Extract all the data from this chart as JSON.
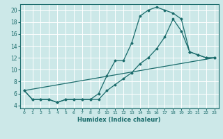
{
  "title": "",
  "xlabel": "Humidex (Indice chaleur)",
  "ylabel": "",
  "bg_color": "#cce8e8",
  "grid_color": "#ffffff",
  "line_color": "#1a6b6b",
  "xlim": [
    -0.5,
    23.5
  ],
  "ylim": [
    3.5,
    21.0
  ],
  "xticks": [
    0,
    1,
    2,
    3,
    4,
    5,
    6,
    7,
    8,
    9,
    10,
    11,
    12,
    13,
    14,
    15,
    16,
    17,
    18,
    19,
    20,
    21,
    22,
    23
  ],
  "yticks": [
    4,
    6,
    8,
    10,
    12,
    14,
    16,
    18,
    20
  ],
  "curve1_x": [
    0,
    1,
    2,
    3,
    4,
    5,
    6,
    7,
    8,
    9,
    10,
    11,
    12,
    13,
    14,
    15,
    16,
    17,
    18,
    19,
    20,
    21,
    22,
    23
  ],
  "curve1_y": [
    6.5,
    5.0,
    5.0,
    5.0,
    4.5,
    5.0,
    5.0,
    5.0,
    5.0,
    6.0,
    9.0,
    11.5,
    11.5,
    14.5,
    19.0,
    20.0,
    20.5,
    20.0,
    19.5,
    18.5,
    13.0,
    12.5,
    12.0,
    12.0
  ],
  "curve2_x": [
    0,
    1,
    2,
    3,
    4,
    5,
    6,
    7,
    8,
    9,
    10,
    11,
    12,
    13,
    14,
    15,
    16,
    17,
    18,
    19,
    20,
    21,
    22,
    23
  ],
  "curve2_y": [
    6.5,
    5.0,
    5.0,
    5.0,
    4.5,
    5.0,
    5.0,
    5.0,
    5.0,
    5.0,
    6.5,
    7.5,
    8.5,
    9.5,
    11.0,
    12.0,
    13.5,
    15.5,
    18.5,
    16.5,
    13.0,
    12.5,
    12.0,
    12.0
  ],
  "curve3_x": [
    0,
    23
  ],
  "curve3_y": [
    6.5,
    12.0
  ]
}
